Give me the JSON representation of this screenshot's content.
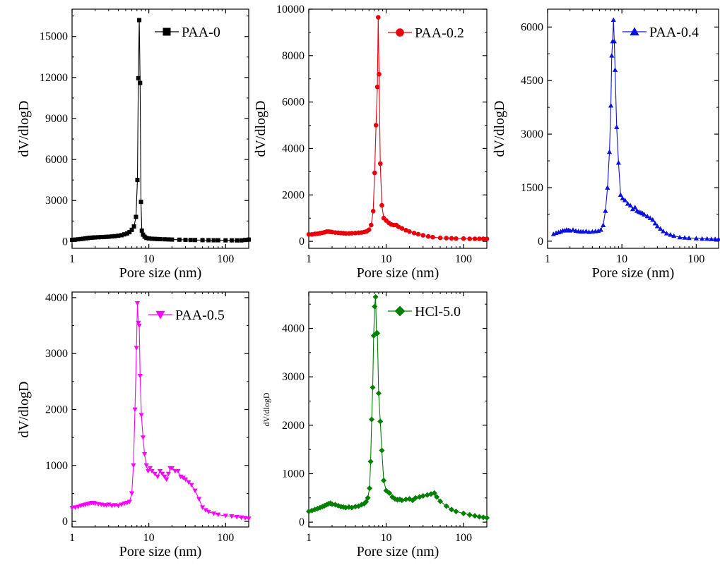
{
  "chart_data": [
    {
      "id": "paa0",
      "type": "line",
      "xscale": "log",
      "xlabel": "Pore size (nm)",
      "ylabel": "dV/dlogD",
      "xlim": [
        1,
        200
      ],
      "ylim": [
        -500,
        17000
      ],
      "xticks": [
        1,
        10,
        100
      ],
      "yticks": [
        0,
        3000,
        6000,
        9000,
        12000,
        15000
      ],
      "color": "#000000",
      "marker": "square",
      "legend": "PAA-0",
      "legend_position": "top-right",
      "series": [
        {
          "name": "PAA-0",
          "x": [
            1.0,
            1.1,
            1.2,
            1.3,
            1.4,
            1.5,
            1.6,
            1.7,
            1.8,
            1.9,
            2.0,
            2.2,
            2.4,
            2.6,
            2.8,
            3.0,
            3.3,
            3.6,
            4.0,
            4.4,
            4.8,
            5.2,
            5.6,
            6.0,
            6.4,
            6.8,
            7.1,
            7.3,
            7.5,
            7.7,
            7.9,
            8.1,
            8.4,
            8.8,
            9.3,
            10,
            11,
            12,
            13,
            14,
            16,
            18,
            20,
            25,
            30,
            35,
            40,
            50,
            60,
            70,
            80,
            100,
            120,
            140,
            160,
            180,
            200
          ],
          "y": [
            120,
            140,
            160,
            180,
            200,
            230,
            250,
            270,
            280,
            290,
            300,
            310,
            320,
            330,
            340,
            350,
            370,
            390,
            420,
            460,
            520,
            590,
            680,
            850,
            1100,
            1800,
            4500,
            11950,
            16200,
            11600,
            2900,
            800,
            500,
            350,
            260,
            220,
            200,
            190,
            180,
            170,
            160,
            150,
            140,
            130,
            120,
            110,
            105,
            100,
            95,
            90,
            90,
            85,
            85,
            80,
            80,
            110,
            140
          ]
        }
      ]
    },
    {
      "id": "paa02",
      "type": "line",
      "xscale": "log",
      "xlabel": "Pore size (nm)",
      "ylabel": "dV/dlogD",
      "xlim": [
        1,
        200
      ],
      "ylim": [
        -300,
        10000
      ],
      "xticks": [
        1,
        10,
        100
      ],
      "yticks": [
        0,
        2000,
        4000,
        6000,
        8000,
        10000
      ],
      "color": "#e8000b",
      "marker": "circle",
      "legend": "PAA-0.2",
      "legend_position": "top-right",
      "series": [
        {
          "name": "PAA-0.2",
          "x": [
            1.0,
            1.1,
            1.2,
            1.3,
            1.4,
            1.5,
            1.6,
            1.7,
            1.8,
            1.9,
            2.0,
            2.2,
            2.4,
            2.6,
            2.8,
            3.0,
            3.3,
            3.6,
            4.0,
            4.4,
            4.8,
            5.2,
            5.6,
            6.0,
            6.4,
            6.8,
            7.1,
            7.4,
            7.7,
            7.9,
            8.1,
            8.4,
            8.8,
            9.3,
            10.0,
            10.8,
            11.6,
            12.5,
            13.5,
            14.5,
            16,
            18,
            20,
            23,
            26,
            30,
            35,
            40,
            50,
            60,
            70,
            80,
            100,
            120,
            140,
            160,
            180,
            200
          ],
          "y": [
            300,
            300,
            320,
            330,
            350,
            370,
            390,
            420,
            420,
            410,
            400,
            380,
            370,
            360,
            350,
            340,
            340,
            350,
            360,
            370,
            380,
            400,
            430,
            500,
            700,
            1300,
            2950,
            5000,
            6650,
            9650,
            7200,
            3350,
            1550,
            1000,
            900,
            800,
            730,
            700,
            700,
            620,
            560,
            480,
            420,
            360,
            310,
            260,
            210,
            180,
            150,
            140,
            130,
            120,
            120,
            110,
            110,
            110,
            110,
            110
          ]
        }
      ]
    },
    {
      "id": "paa04",
      "type": "line",
      "xscale": "log",
      "xlabel": "Pore size (nm)",
      "ylabel": "dV/dlogD",
      "xlim": [
        1,
        200
      ],
      "ylim": [
        -200,
        6500
      ],
      "xticks": [
        1,
        10,
        100
      ],
      "yticks": [
        0,
        1500,
        3000,
        4500,
        6000
      ],
      "color": "#0b12e0",
      "marker": "triangle-up",
      "legend": "PAA-0.4",
      "legend_position": "top-right",
      "series": [
        {
          "name": "PAA-0.4",
          "x": [
            1.2,
            1.3,
            1.4,
            1.5,
            1.6,
            1.7,
            1.8,
            1.9,
            2.0,
            2.2,
            2.4,
            2.6,
            2.8,
            3.0,
            3.3,
            3.6,
            4.0,
            4.4,
            4.8,
            5.2,
            5.6,
            6.0,
            6.4,
            6.8,
            7.1,
            7.3,
            7.5,
            7.7,
            7.9,
            8.1,
            8.5,
            9.0,
            9.6,
            10.2,
            11,
            12,
            13,
            14,
            15,
            16,
            17,
            18,
            19,
            20,
            22,
            24,
            26,
            28,
            30,
            33,
            36,
            40,
            45,
            50,
            60,
            70,
            80,
            100,
            120,
            140,
            160,
            180,
            200
          ],
          "y": [
            200,
            230,
            250,
            270,
            300,
            300,
            320,
            310,
            300,
            320,
            290,
            280,
            270,
            270,
            280,
            260,
            270,
            280,
            290,
            320,
            450,
            850,
            1500,
            2500,
            3800,
            5200,
            5600,
            6200,
            5600,
            4800,
            3200,
            2200,
            1300,
            1200,
            1150,
            1050,
            1000,
            900,
            950,
            850,
            820,
            800,
            780,
            750,
            700,
            650,
            600,
            500,
            420,
            350,
            280,
            220,
            180,
            150,
            110,
            100,
            90,
            80,
            70,
            70,
            60,
            60,
            60
          ]
        }
      ]
    },
    {
      "id": "paa05",
      "type": "line",
      "xscale": "log",
      "xlabel": "Pore size (nm)",
      "ylabel": "dV/dlogD",
      "xlim": [
        1,
        200
      ],
      "ylim": [
        -100,
        4100
      ],
      "xticks": [
        1,
        10,
        100
      ],
      "yticks": [
        0,
        1000,
        2000,
        3000,
        4000
      ],
      "color": "#ff00ff",
      "marker": "triangle-down",
      "legend": "PAA-0.5",
      "legend_position": "top-right",
      "series": [
        {
          "name": "PAA-0.5",
          "x": [
            1.0,
            1.1,
            1.2,
            1.3,
            1.4,
            1.5,
            1.6,
            1.7,
            1.8,
            1.9,
            2.0,
            2.2,
            2.4,
            2.6,
            2.8,
            3.0,
            3.3,
            3.6,
            4.0,
            4.4,
            4.8,
            5.2,
            5.6,
            6.0,
            6.3,
            6.6,
            6.9,
            7.1,
            7.3,
            7.5,
            7.7,
            8.0,
            8.4,
            8.8,
            9.3,
            9.8,
            10.4,
            11,
            12,
            13,
            14,
            15,
            16,
            17,
            18,
            19,
            20,
            22,
            24,
            26,
            28,
            30,
            33,
            36,
            40,
            45,
            50,
            55,
            60,
            70,
            80,
            100,
            120,
            140,
            160,
            180,
            200
          ],
          "y": [
            240,
            250,
            260,
            280,
            290,
            300,
            310,
            320,
            330,
            330,
            320,
            310,
            300,
            290,
            290,
            300,
            280,
            290,
            280,
            300,
            320,
            330,
            350,
            500,
            1000,
            2000,
            3100,
            3900,
            3550,
            3500,
            2600,
            1900,
            1500,
            1200,
            1000,
            900,
            950,
            900,
            850,
            800,
            900,
            850,
            800,
            750,
            850,
            950,
            950,
            900,
            900,
            800,
            780,
            750,
            700,
            650,
            550,
            400,
            250,
            200,
            170,
            140,
            120,
            100,
            90,
            80,
            70,
            60,
            50
          ]
        }
      ]
    },
    {
      "id": "hcl50",
      "type": "line",
      "xscale": "log",
      "xlabel": "Pore size (nm)",
      "ylabel": "dV/dlogD",
      "xlim": [
        1,
        200
      ],
      "ylim": [
        -100,
        4750
      ],
      "xticks": [
        1,
        10,
        100
      ],
      "yticks": [
        0,
        1000,
        2000,
        3000,
        4000
      ],
      "color": "#008000",
      "marker": "diamond",
      "legend": "HCl-5.0",
      "legend_position": "top-right",
      "series": [
        {
          "name": "HCl-5.0",
          "x": [
            1.0,
            1.1,
            1.2,
            1.3,
            1.4,
            1.5,
            1.6,
            1.7,
            1.8,
            1.9,
            2.0,
            2.2,
            2.4,
            2.6,
            2.8,
            3.0,
            3.3,
            3.6,
            4.0,
            4.4,
            4.8,
            5.2,
            5.5,
            5.8,
            6.1,
            6.3,
            6.5,
            6.7,
            6.9,
            7.1,
            7.3,
            7.5,
            7.7,
            8.0,
            8.4,
            8.8,
            9.3,
            10,
            11,
            12,
            13,
            14,
            15,
            16,
            18,
            20,
            22,
            24,
            27,
            30,
            34,
            38,
            42,
            45,
            50,
            60,
            70,
            80,
            100,
            120,
            140,
            160,
            180,
            200
          ],
          "y": [
            220,
            240,
            260,
            280,
            300,
            320,
            340,
            360,
            380,
            390,
            370,
            360,
            340,
            320,
            310,
            300,
            310,
            300,
            320,
            330,
            360,
            380,
            420,
            500,
            700,
            1250,
            2120,
            2780,
            3850,
            4450,
            4650,
            3900,
            3900,
            2660,
            2080,
            1480,
            860,
            650,
            600,
            520,
            480,
            460,
            470,
            450,
            470,
            480,
            450,
            500,
            520,
            540,
            560,
            580,
            600,
            520,
            430,
            330,
            260,
            220,
            180,
            150,
            130,
            110,
            100,
            90
          ]
        }
      ]
    }
  ],
  "colors": {
    "paa0": "#000000",
    "paa02": "#e8000b",
    "paa04": "#0b12e0",
    "paa05": "#ff00ff",
    "hcl50": "#008000"
  }
}
